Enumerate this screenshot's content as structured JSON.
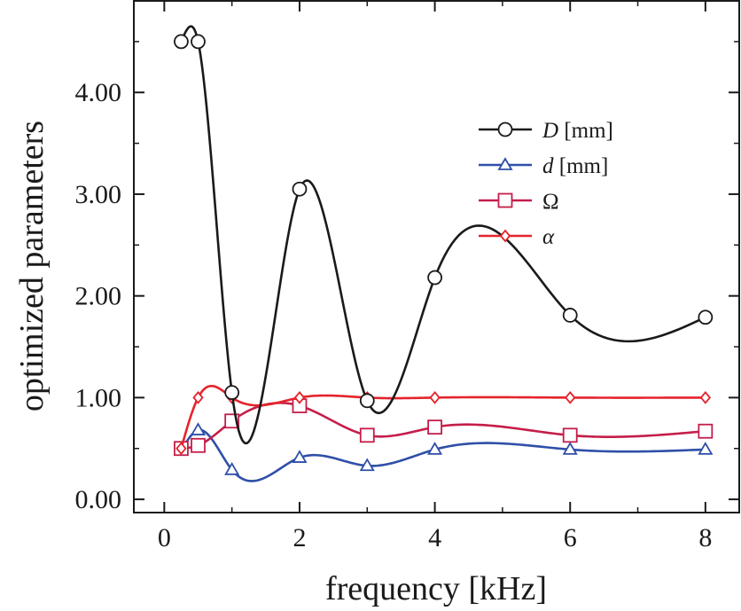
{
  "chart_data": {
    "type": "line",
    "title": "",
    "xlabel": "frequency [kHz]",
    "ylabel": "optimized parameters",
    "xlim": [
      -0.45,
      8.5
    ],
    "ylim": [
      -0.13,
      4.9
    ],
    "xticks": [
      0,
      2,
      4,
      6,
      8
    ],
    "xtick_labels": [
      "0",
      "2",
      "4",
      "6",
      "8"
    ],
    "yticks": [
      0,
      1,
      2,
      3,
      4
    ],
    "ytick_labels": [
      "0.00",
      "1.00",
      "2.00",
      "3.00",
      "4.00"
    ],
    "grid": false,
    "legend_position": "top-right",
    "series": [
      {
        "name_symbol": "D",
        "name_unit": " [mm]",
        "marker": "circle",
        "color": "#1a1a1a",
        "x": [
          0.25,
          0.5,
          1,
          2,
          3,
          4,
          6,
          8
        ],
        "y": [
          4.5,
          4.5,
          1.05,
          3.05,
          0.97,
          2.18,
          1.81,
          1.79
        ]
      },
      {
        "name_symbol": "d",
        "name_unit": " [mm]",
        "marker": "triangle",
        "color": "#2f4fa8",
        "x": [
          0.25,
          0.5,
          1,
          2,
          3,
          4,
          6,
          8
        ],
        "y": [
          0.48,
          0.68,
          0.29,
          0.41,
          0.33,
          0.49,
          0.49,
          0.49
        ]
      },
      {
        "name_symbol": "Ω",
        "name_unit": "",
        "marker": "square",
        "color": "#c41e4a",
        "x": [
          0.25,
          0.5,
          1,
          2,
          3,
          4,
          6,
          8
        ],
        "y": [
          0.5,
          0.53,
          0.77,
          0.92,
          0.63,
          0.71,
          0.63,
          0.67
        ]
      },
      {
        "name_symbol": "α",
        "name_unit": "",
        "marker": "diamond",
        "color": "#e5232b",
        "x": [
          0.25,
          0.5,
          1,
          2,
          3,
          4,
          6,
          8
        ],
        "y": [
          0.5,
          1.0,
          1.0,
          1.0,
          1.0,
          1.0,
          1.0,
          1.0
        ]
      }
    ]
  }
}
